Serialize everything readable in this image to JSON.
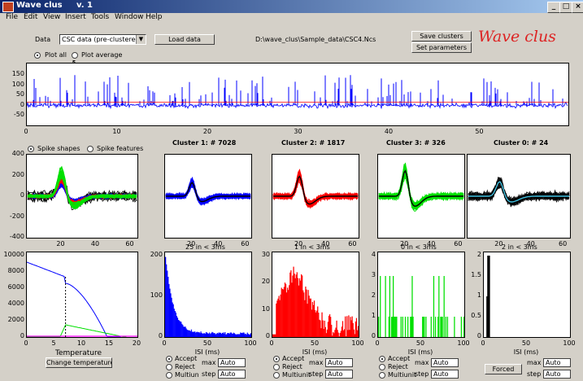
{
  "window": {
    "title": "Wave clus     v. 1",
    "min": "_",
    "max": "□",
    "close": "×"
  },
  "menu": [
    "File",
    "Edit",
    "View",
    "Insert",
    "Tools",
    "Window",
    "Help"
  ],
  "controls": {
    "data_label": "Data",
    "data_select": "CSC data (pre-clustered)",
    "load_button": "Load data",
    "file_path": "D:\\wave_clus\\Sample_data\\CSC4.Ncs",
    "save_button": "Save clusters",
    "params_button": "Set parameters",
    "plot_all": "Plot all",
    "plot_average": "Plot average",
    "spike_shapes": "Spike shapes",
    "spike_features": "Spike features",
    "temperature_label": "Temperature",
    "change_temp_button": "Change temperature",
    "forced_button": "Forced"
  },
  "logo": "Wave clus",
  "colors": {
    "blue": "#0000ff",
    "red": "#ff0000",
    "green": "#00e000",
    "black": "#000000",
    "cyan": "#40c0e0",
    "magenta": "#ff00ff"
  },
  "raw_trace": {
    "yticks": [
      "150",
      "100",
      "50",
      "0",
      "-50"
    ],
    "xticks": [
      "0",
      "10",
      "20",
      "30",
      "40",
      "50"
    ]
  },
  "shape_yticks": [
    "400",
    "200",
    "0",
    "-200",
    "-400"
  ],
  "shape_xticks": [
    "20",
    "40",
    "60"
  ],
  "clusters": [
    {
      "title": "Cluster 1:  # 7028",
      "isi": "25 in < 3ms",
      "yticks": [
        "200",
        "100",
        "0"
      ],
      "color": "#0000ff"
    },
    {
      "title": "Cluster 2:  # 1817",
      "isi": "1 in < 3ms",
      "yticks": [
        "30",
        "20",
        "10",
        "0"
      ],
      "color": "#ff0000"
    },
    {
      "title": "Cluster 3:  # 326",
      "isi": "0 in < 3ms",
      "yticks": [
        "4",
        "3",
        "2",
        "1",
        "0"
      ],
      "color": "#00e000"
    },
    {
      "title": "Cluster 0:  # 24",
      "isi": "2 in < 3ms",
      "yticks": [
        "2",
        "1.5",
        "1",
        "0.5",
        "0"
      ],
      "color": "#000000"
    }
  ],
  "isi_xticks": [
    "0",
    "50",
    "100"
  ],
  "isi_xlabel": "ISI (ms)",
  "isi_controls": {
    "accept": "Accept",
    "reject": "Reject",
    "multiunit": "Multiun",
    "multiunit_full": "Multiunit",
    "max": "max",
    "step": "step",
    "auto": "Auto"
  },
  "temp_plot": {
    "yticks": [
      "10000",
      "8000",
      "6000",
      "4000",
      "2000",
      "0"
    ],
    "xticks": [
      "0",
      "5",
      "10",
      "15",
      "20"
    ]
  }
}
